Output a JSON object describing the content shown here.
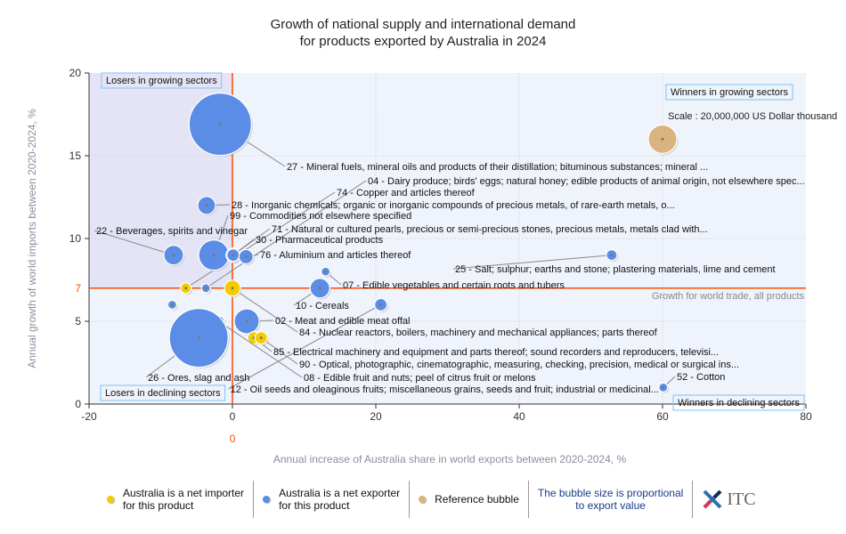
{
  "chart_data": {
    "type": "scatter",
    "title": [
      "Growth of national supply and international demand",
      "for products exported by Australia in 2024"
    ],
    "xlabel": "Annual increase of Australia share in world exports between 2020-2024, %",
    "ylabel": "Annual growth of world imports between 2020-2024, %",
    "xlim": [
      -20,
      80
    ],
    "ylim": [
      0,
      20
    ],
    "xticks": [
      "-20",
      "0",
      "20",
      "40",
      "60",
      "80"
    ],
    "yticks": [
      "0",
      "5",
      "10",
      "15",
      "20"
    ],
    "x_reference": {
      "value": 0,
      "label": "0"
    },
    "y_reference": {
      "value": 7,
      "label": "7",
      "text": "Growth for world trade, all products"
    },
    "quadrants": {
      "top_left": "Losers in growing sectors",
      "top_right": "Winners in growing sectors",
      "bottom_left": "Losers in declining sectors",
      "bottom_right": "Winners in declining sectors"
    },
    "scale_text": "Scale : 20,000,000 US Dollar thousand",
    "colors": {
      "exporter": "#5b8de6",
      "importer": "#f5cc00",
      "reference": "#d9b480",
      "orange": "#ff4a00"
    },
    "points": [
      {
        "label": "27 - Mineral fuels, mineral oils and products of their distillation; bituminous substances; mineral ...",
        "x": -1.7,
        "y": 16.9,
        "size": 35,
        "type": "exporter"
      },
      {
        "label": "04 - Dairy produce; birds' eggs; natural honey; edible products of animal origin, not elsewhere spec...",
        "x": -3.7,
        "y": 7.0,
        "size": 5,
        "type": "exporter"
      },
      {
        "label": "74 - Copper and articles thereof",
        "x": -6.5,
        "y": 7.0,
        "size": 6,
        "type": "importer"
      },
      {
        "label": "28 - Inorganic chemicals; organic or inorganic compounds of precious metals, of rare-earth metals, o...",
        "x": -3.6,
        "y": 12.0,
        "size": 10,
        "type": "exporter"
      },
      {
        "label": "99 - Commodities not elsewhere specified",
        "x": -2.6,
        "y": 9.0,
        "size": 17,
        "type": "exporter"
      },
      {
        "label": "71 - Natural or cultured pearls, precious or semi-precious stones, precious metals, metals clad with...",
        "x": 0.1,
        "y": 9.0,
        "size": 8,
        "type": "exporter"
      },
      {
        "label": "22 - Beverages, spirits and vinegar",
        "x": -8.2,
        "y": 9.0,
        "size": 11,
        "type": "exporter"
      },
      {
        "label": "30 - Pharmaceutical products",
        "x": 0.1,
        "y": 9.0,
        "size": 7,
        "type": "exporter"
      },
      {
        "label": "76 - Aluminium and articles thereof",
        "x": 1.9,
        "y": 8.9,
        "size": 8,
        "type": "exporter"
      },
      {
        "label": "25 - Salt; sulphur; earths and stone; plastering materials, lime and cement",
        "x": 52.9,
        "y": 9.0,
        "size": 6,
        "type": "exporter"
      },
      {
        "label": "07 - Edible vegetables and certain roots and tubers",
        "x": 13.0,
        "y": 8.0,
        "size": 5,
        "type": "exporter"
      },
      {
        "label": "10 - Cereals",
        "x": 12.2,
        "y": 7.0,
        "size": 11,
        "type": "exporter"
      },
      {
        "label": "02 - Meat and edible meat offal",
        "x": 2.0,
        "y": 5.0,
        "size": 14,
        "type": "exporter"
      },
      {
        "label": "84 - Nuclear reactors, boilers, machinery and mechanical appliances; parts thereof",
        "x": 0.0,
        "y": 7.0,
        "size": 9,
        "type": "importer"
      },
      {
        "label": "85 - Electrical machinery and equipment and parts thereof; sound recorders and reproducers, televisi...",
        "x": 3.0,
        "y": 4.0,
        "size": 7,
        "type": "importer"
      },
      {
        "label": "90 - Optical, photographic, cinematographic, measuring, checking, precision, medical or surgical ins...",
        "x": 4.0,
        "y": 4.0,
        "size": 7,
        "type": "importer"
      },
      {
        "label": "08 - Edible fruit and nuts; peel of citrus fruit or melons",
        "x": -1.9,
        "y": 5.0,
        "size": 6,
        "type": "exporter"
      },
      {
        "label": "26 - Ores, slag and ash",
        "x": -4.7,
        "y": 4.0,
        "size": 33,
        "type": "exporter"
      },
      {
        "label": "12 - Oil seeds and oleaginous fruits; miscellaneous grains, seeds and fruit; industrial or medicinal...",
        "x": 20.7,
        "y": 6.0,
        "size": 7,
        "type": "exporter"
      },
      {
        "label": "52 - Cotton",
        "x": 60.1,
        "y": 1.0,
        "size": 5,
        "type": "exporter"
      },
      {
        "label": "",
        "x": -8.4,
        "y": 6.0,
        "size": 5,
        "type": "exporter"
      },
      {
        "label": "",
        "x": 60.0,
        "y": 16.0,
        "size": 16,
        "type": "reference"
      }
    ]
  },
  "legend": {
    "importer": [
      "Australia is a net importer",
      "for this product"
    ],
    "exporter": [
      "Australia is a net exporter",
      "for this product"
    ],
    "reference": "Reference bubble",
    "note": [
      "The bubble size is proportional",
      "to export value"
    ],
    "logo": "ITC"
  }
}
